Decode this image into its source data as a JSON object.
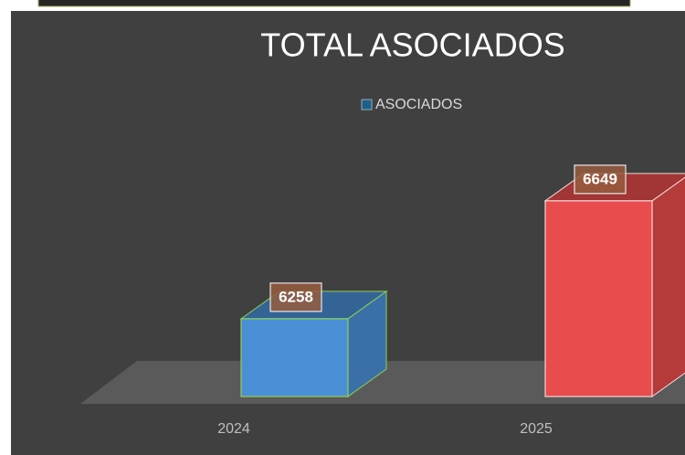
{
  "chart_data": {
    "type": "bar3d",
    "title": "TOTAL ASOCIADOS",
    "categories": [
      "2024",
      "2025"
    ],
    "series": [
      {
        "name": "ASOCIADOS",
        "color": "#4a8fd6",
        "values": [
          6258,
          6649
        ]
      }
    ],
    "colors": [
      "#4a8fd6",
      "#e84c4c"
    ],
    "ylim": [
      6000,
      7000
    ],
    "grid": false,
    "legend": "top"
  }
}
